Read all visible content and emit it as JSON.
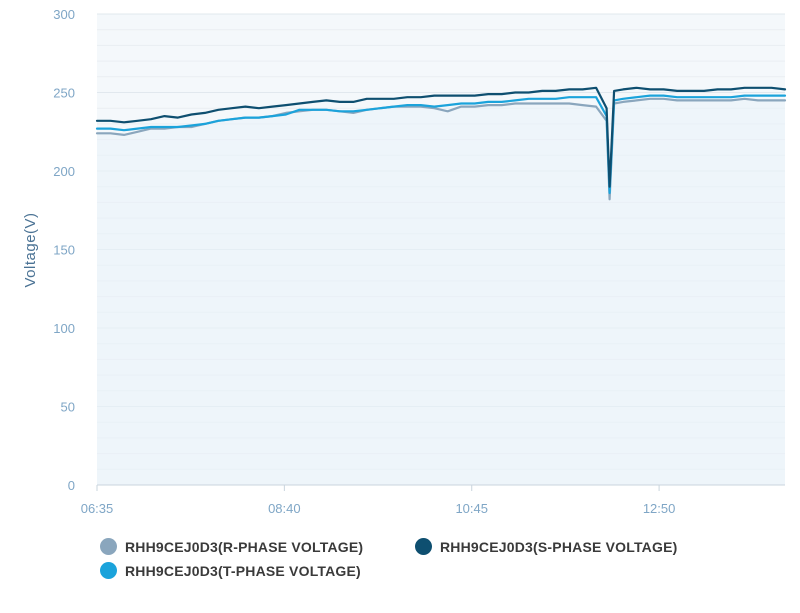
{
  "chart_data": {
    "type": "line",
    "title": "",
    "xlabel": "",
    "ylabel": "Voltage(V)",
    "ylim": [
      0,
      300
    ],
    "yticks": [
      0,
      50,
      100,
      150,
      200,
      250,
      300
    ],
    "xlim": [
      "06:35",
      "14:14"
    ],
    "xticks": [
      "06:35",
      "08:40",
      "10:45",
      "12:50"
    ],
    "grid": true,
    "legend_position": "bottom",
    "x": [
      "06:35",
      "06:44",
      "06:53",
      "07:02",
      "07:11",
      "07:20",
      "07:29",
      "07:38",
      "07:47",
      "07:56",
      "08:05",
      "08:14",
      "08:23",
      "08:32",
      "08:41",
      "08:50",
      "08:59",
      "09:08",
      "09:17",
      "09:26",
      "09:35",
      "09:44",
      "09:53",
      "10:02",
      "10:11",
      "10:20",
      "10:29",
      "10:38",
      "10:47",
      "10:56",
      "11:05",
      "11:14",
      "11:23",
      "11:32",
      "11:41",
      "11:50",
      "11:59",
      "12:08",
      "12:15",
      "12:17",
      "12:20",
      "12:26",
      "12:35",
      "12:44",
      "12:53",
      "13:02",
      "13:11",
      "13:20",
      "13:29",
      "13:38",
      "13:47",
      "13:56",
      "14:05",
      "14:14"
    ],
    "series": [
      {
        "name": "RHH9CEJ0D3(R-PHASE VOLTAGE)",
        "color": "#8aa6bd",
        "values": [
          224,
          224,
          223,
          225,
          227,
          227,
          228,
          228,
          230,
          232,
          233,
          234,
          234,
          235,
          237,
          238,
          239,
          239,
          238,
          237,
          239,
          240,
          241,
          241,
          241,
          240,
          238,
          241,
          241,
          242,
          242,
          243,
          243,
          243,
          243,
          243,
          242,
          241,
          232,
          182,
          243,
          244,
          245,
          246,
          246,
          245,
          245,
          245,
          245,
          245,
          246,
          245,
          245,
          245
        ]
      },
      {
        "name": "RHH9CEJ0D3(S-PHASE VOLTAGE)",
        "color": "#0e4f70",
        "values": [
          232,
          232,
          231,
          232,
          233,
          235,
          234,
          236,
          237,
          239,
          240,
          241,
          240,
          241,
          242,
          243,
          244,
          245,
          244,
          244,
          246,
          246,
          246,
          247,
          247,
          248,
          248,
          248,
          248,
          249,
          249,
          250,
          250,
          251,
          251,
          252,
          252,
          253,
          240,
          190,
          251,
          252,
          253,
          252,
          252,
          251,
          251,
          251,
          252,
          252,
          253,
          253,
          253,
          252
        ]
      },
      {
        "name": "RHH9CEJ0D3(T-PHASE VOLTAGE)",
        "color": "#1ba3db",
        "values": [
          227,
          227,
          226,
          227,
          228,
          228,
          228,
          229,
          230,
          232,
          233,
          234,
          234,
          235,
          236,
          239,
          239,
          239,
          238,
          238,
          239,
          240,
          241,
          242,
          242,
          241,
          242,
          243,
          243,
          244,
          244,
          245,
          246,
          246,
          246,
          247,
          247,
          247,
          235,
          186,
          245,
          246,
          247,
          248,
          248,
          247,
          247,
          247,
          247,
          247,
          248,
          248,
          248,
          248
        ]
      }
    ]
  }
}
